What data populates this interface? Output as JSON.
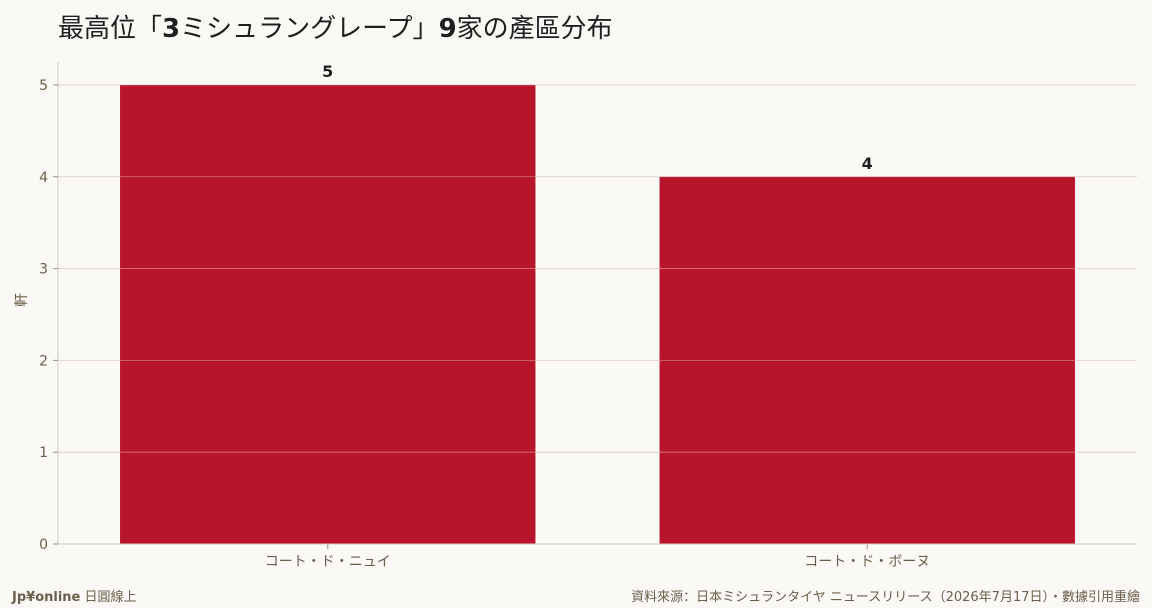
{
  "title": {
    "prefix": "最高位「",
    "bold1": "3",
    "middle": "ミシュラングレープ」",
    "bold2": "9",
    "suffix": "家の產區分布"
  },
  "chart_data": {
    "type": "bar",
    "categories": [
      "コート・ド・ニュイ",
      "コート・ド・ボーヌ"
    ],
    "values": [
      5,
      4
    ],
    "ylabel": "軒",
    "ylim": [
      0,
      5.25
    ],
    "yticks": [
      0,
      1,
      2,
      3,
      4,
      5
    ],
    "grid": true,
    "bar_color": "#b8152c",
    "data_labels": [
      "5",
      "4"
    ]
  },
  "footer": {
    "brand": "Jp¥online",
    "brand_suffix": " 日圓線上",
    "source": "資料來源：日本ミシュランタイヤ ニュースリリース（2026年7月17日）・數據引用重繪"
  }
}
